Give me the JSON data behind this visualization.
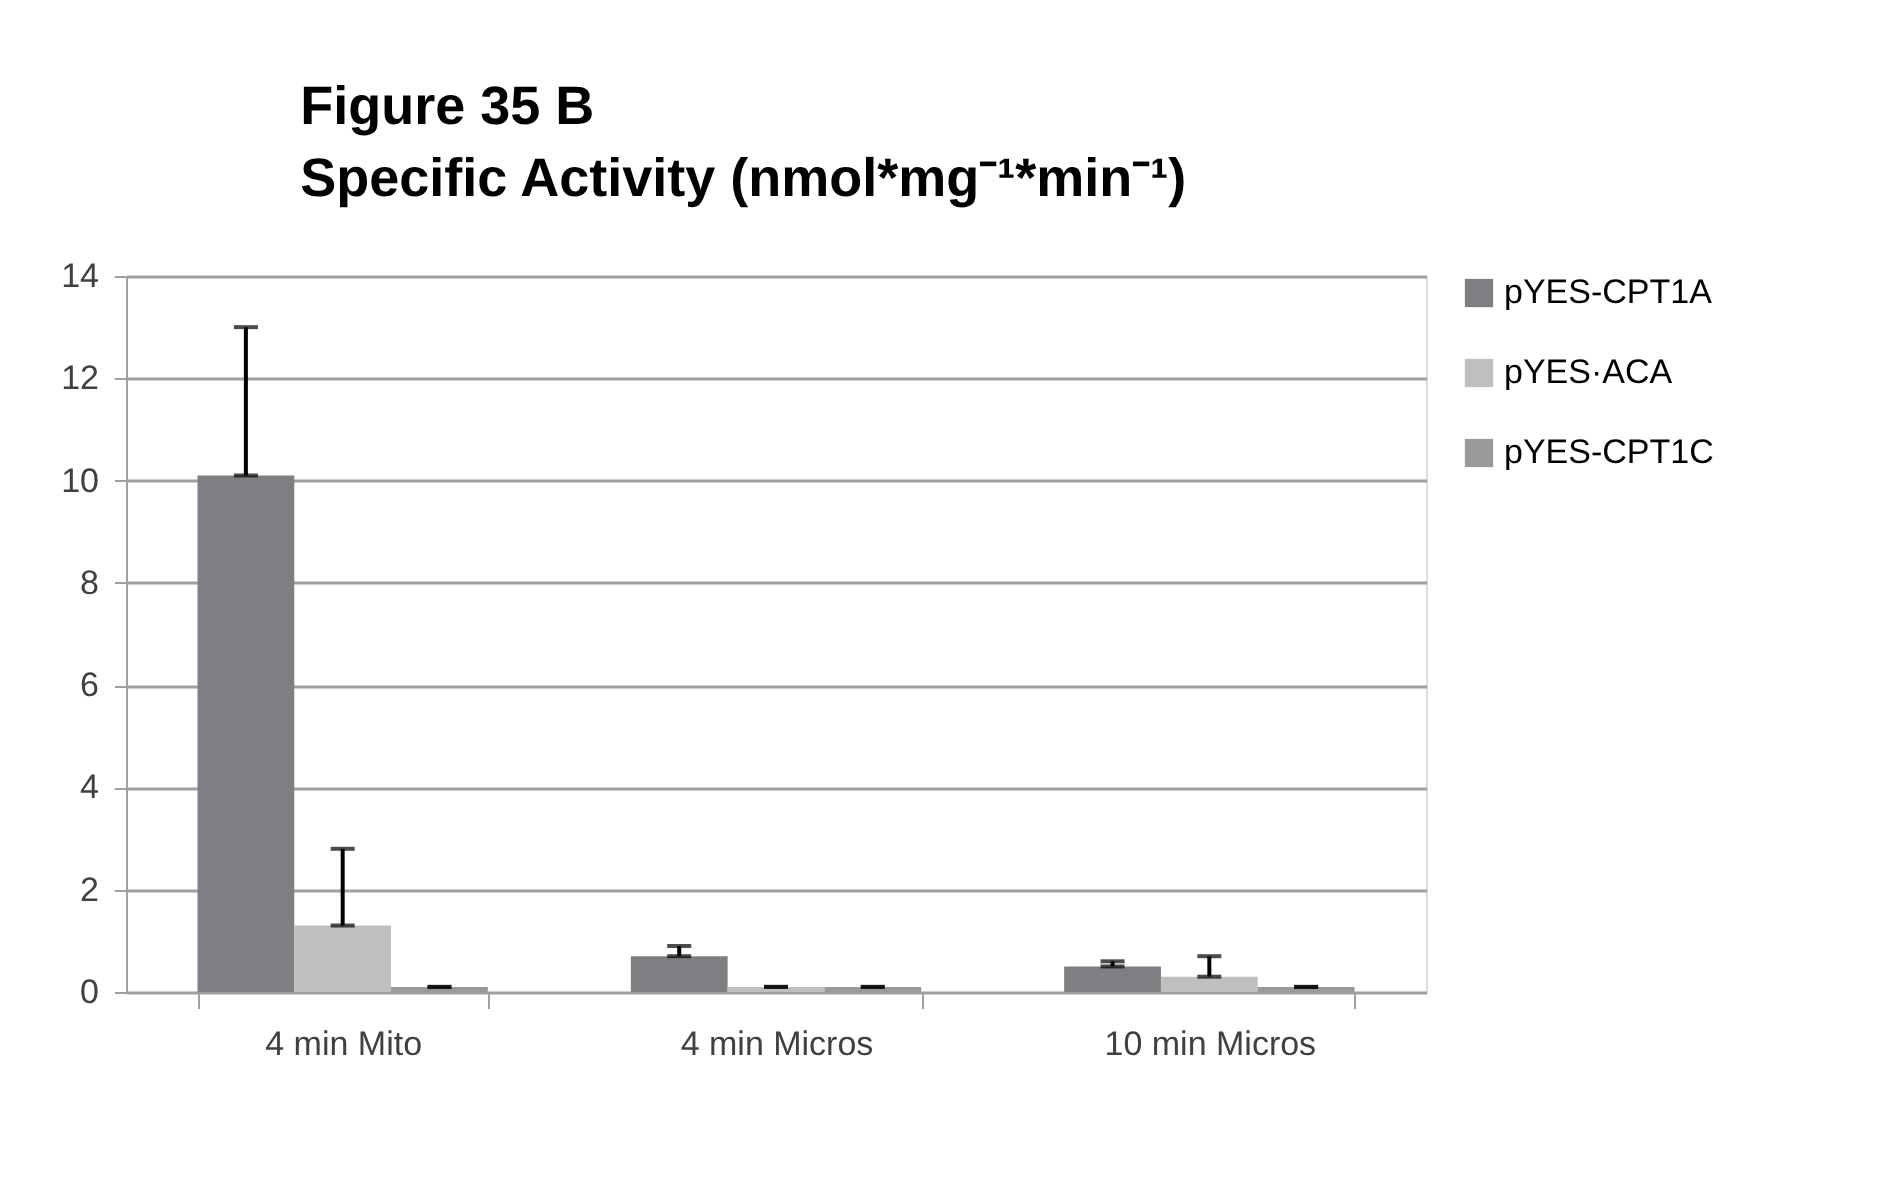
{
  "chart_data": {
    "type": "bar",
    "title": "Figure 35 B\nSpecific Activity (nmol*mg⁻¹*min⁻¹)",
    "categories": [
      "4 min Mito",
      "4 min Micros",
      "10 min Micros"
    ],
    "series": [
      {
        "name": "pYES-CPT1A",
        "color": "#7f7f83",
        "values": [
          10.1,
          0.7,
          0.5
        ],
        "errors": [
          [
            10.1,
            13.0
          ],
          [
            0.7,
            0.9
          ],
          [
            0.5,
            0.6
          ]
        ]
      },
      {
        "name": "pYES·ACA",
        "color": "#bfbfbf",
        "values": [
          1.3,
          0.1,
          0.3
        ],
        "errors": [
          [
            1.3,
            2.8
          ],
          [
            0.1,
            0.1
          ],
          [
            0.3,
            0.7
          ]
        ]
      },
      {
        "name": "pYES-CPT1C",
        "color": "#999999",
        "values": [
          0.1,
          0.1,
          0.1
        ],
        "errors": [
          [
            0.1,
            0.1
          ],
          [
            0.1,
            0.1
          ],
          [
            0.1,
            0.1
          ]
        ]
      }
    ],
    "ylim": [
      0,
      14
    ],
    "yticks": [
      0,
      2,
      4,
      6,
      8,
      10,
      12,
      14
    ],
    "grid": "y",
    "legend": "right"
  }
}
